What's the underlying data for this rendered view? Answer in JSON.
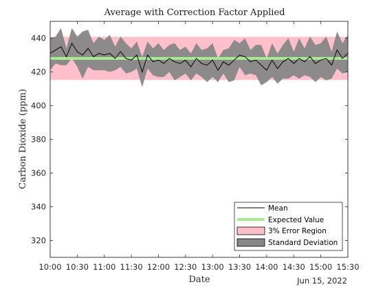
{
  "chart_data": {
    "type": "line",
    "title": "Average with Correction Factor Applied",
    "xlabel": "Date",
    "ylabel": "Carbon Dioxide (ppm)",
    "date_label": "Jun 15, 2022",
    "xlim": [
      0,
      330
    ],
    "ylim": [
      310,
      450
    ],
    "x_ticks": [
      {
        "label": "10:00",
        "value": 0
      },
      {
        "label": "10:30",
        "value": 30
      },
      {
        "label": "11:00",
        "value": 60
      },
      {
        "label": "11:30",
        "value": 90
      },
      {
        "label": "12:00",
        "value": 120
      },
      {
        "label": "12:30",
        "value": 150
      },
      {
        "label": "13:00",
        "value": 180
      },
      {
        "label": "13:30",
        "value": 210
      },
      {
        "label": "14:00",
        "value": 240
      },
      {
        "label": "14:30",
        "value": 270
      },
      {
        "label": "15:00",
        "value": 300
      },
      {
        "label": "15:30",
        "value": 330
      }
    ],
    "y_ticks": [
      320,
      340,
      360,
      380,
      400,
      420,
      440
    ],
    "x": [
      0,
      6,
      12,
      18,
      24,
      30,
      36,
      42,
      48,
      54,
      60,
      66,
      72,
      78,
      84,
      90,
      96,
      102,
      108,
      114,
      120,
      126,
      132,
      138,
      144,
      150,
      156,
      162,
      168,
      174,
      180,
      186,
      192,
      198,
      204,
      210,
      216,
      222,
      228,
      234,
      240,
      246,
      252,
      258,
      264,
      270,
      276,
      282,
      288,
      294,
      300,
      306,
      312,
      318,
      324,
      330
    ],
    "mean": [
      431,
      433,
      435,
      429,
      437,
      432,
      430,
      434,
      429,
      431,
      430,
      431,
      428,
      432,
      428,
      427,
      430,
      420,
      430,
      426,
      427,
      425,
      428,
      426,
      425,
      427,
      423,
      428,
      425,
      424,
      427,
      421,
      426,
      424,
      427,
      430,
      429,
      426,
      427,
      424,
      421,
      427,
      422,
      426,
      428,
      425,
      428,
      426,
      429,
      425,
      427,
      428,
      424,
      433,
      428,
      431
    ],
    "std_upper": [
      440,
      441,
      446,
      434,
      446,
      441,
      444,
      445,
      437,
      441,
      439,
      442,
      435,
      441,
      437,
      434,
      438,
      429,
      438,
      434,
      437,
      433,
      436,
      437,
      433,
      435,
      431,
      437,
      433,
      434,
      437,
      428,
      433,
      434,
      439,
      437,
      440,
      433,
      436,
      436,
      428,
      437,
      431,
      436,
      440,
      432,
      440,
      434,
      441,
      436,
      437,
      441,
      432,
      444,
      437,
      442
    ],
    "std_lower": [
      421,
      425,
      424,
      424,
      428,
      423,
      416,
      423,
      421,
      421,
      421,
      420,
      421,
      423,
      419,
      420,
      422,
      411,
      422,
      418,
      417,
      417,
      420,
      415,
      417,
      419,
      415,
      419,
      417,
      414,
      417,
      414,
      419,
      414,
      415,
      423,
      418,
      419,
      418,
      412,
      414,
      417,
      413,
      416,
      416,
      418,
      416,
      418,
      417,
      414,
      417,
      415,
      416,
      422,
      419,
      420
    ],
    "expected_value": 428,
    "error_region": [
      415.2,
      440.8
    ],
    "legend_position": "bottom-right",
    "series": [
      {
        "name": "Mean",
        "color": "#000000"
      },
      {
        "name": "Expected Value",
        "color": "#a8ec8f"
      },
      {
        "name": "3% Error Region",
        "color": "#ffc0cb"
      },
      {
        "name": "Standard Deviation",
        "color": "#878787"
      }
    ]
  }
}
